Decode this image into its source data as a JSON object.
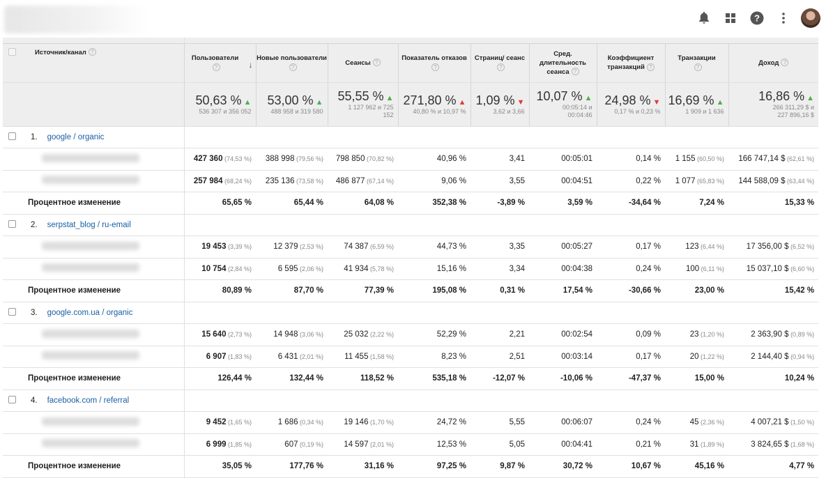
{
  "colors": {
    "up": "#4caf50",
    "down": "#e53935",
    "link": "#1a5fa5",
    "header_bg": "#eeeeee"
  },
  "header": {
    "source": "Источник/канал",
    "cols": [
      {
        "label": "Пользователи",
        "sort": true
      },
      {
        "label": "Новые пользователи"
      },
      {
        "label": "Сеансы"
      },
      {
        "label": "Показатель отказов"
      },
      {
        "label": "Страниц/ сеанс"
      },
      {
        "label": "Сред. длительность сеанса"
      },
      {
        "label": "Коэффициент транзакций"
      },
      {
        "label": "Транзакции"
      },
      {
        "label": "Доход"
      }
    ]
  },
  "summary": [
    {
      "big": "50,63 %",
      "dir": "up",
      "sub": "536 307 и 356 052"
    },
    {
      "big": "53,00 %",
      "dir": "up",
      "sub": "488 958 и 319 580"
    },
    {
      "big": "55,55 %",
      "dir": "up",
      "sub": "1 127 962 и 725 152"
    },
    {
      "big": "271,80 %",
      "dir": "up-red",
      "sub": "40,80 % и 10,97 %"
    },
    {
      "big": "1,09 %",
      "dir": "down",
      "sub": "3,62 и 3,66"
    },
    {
      "big": "10,07 %",
      "dir": "up",
      "sub": "00:05:14 и 00:04:46"
    },
    {
      "big": "24,98 %",
      "dir": "down",
      "sub": "0,17 % и 0,23 %"
    },
    {
      "big": "16,69 %",
      "dir": "up",
      "sub": "1 909 и 1 636"
    },
    {
      "big": "16,86 %",
      "dir": "up",
      "sub": "266 311,29 $ и 227 896,16 $"
    }
  ],
  "change_label": "Процентное изменение",
  "groups": [
    {
      "num": "1.",
      "name": "google / organic",
      "rows": [
        [
          [
            "427 360",
            "(74,53 %)"
          ],
          [
            "388 998",
            "(79,56 %)"
          ],
          [
            "798 850",
            "(70,82 %)"
          ],
          [
            "40,96 %",
            ""
          ],
          [
            "3,41",
            ""
          ],
          [
            "00:05:01",
            ""
          ],
          [
            "0,14 %",
            ""
          ],
          [
            "1 155",
            "(60,50 %)"
          ],
          [
            "166 747,14 $",
            "(62,61 %)"
          ]
        ],
        [
          [
            "257 984",
            "(68,24 %)"
          ],
          [
            "235 136",
            "(73,58 %)"
          ],
          [
            "486 877",
            "(67,14 %)"
          ],
          [
            "9,06 %",
            ""
          ],
          [
            "3,55",
            ""
          ],
          [
            "00:04:51",
            ""
          ],
          [
            "0,22 %",
            ""
          ],
          [
            "1 077",
            "(65,83 %)"
          ],
          [
            "144 588,09 $",
            "(63,44 %)"
          ]
        ]
      ],
      "change": [
        "65,65 %",
        "65,44 %",
        "64,08 %",
        "352,38 %",
        "-3,89 %",
        "3,59 %",
        "-34,64 %",
        "7,24 %",
        "15,33 %"
      ]
    },
    {
      "num": "2.",
      "name": "serpstat_blog / ru-email",
      "rows": [
        [
          [
            "19 453",
            "(3,39 %)"
          ],
          [
            "12 379",
            "(2,53 %)"
          ],
          [
            "74 387",
            "(6,59 %)"
          ],
          [
            "44,73 %",
            ""
          ],
          [
            "3,35",
            ""
          ],
          [
            "00:05:27",
            ""
          ],
          [
            "0,17 %",
            ""
          ],
          [
            "123",
            "(6,44 %)"
          ],
          [
            "17 356,00 $",
            "(6,52 %)"
          ]
        ],
        [
          [
            "10 754",
            "(2,84 %)"
          ],
          [
            "6 595",
            "(2,06 %)"
          ],
          [
            "41 934",
            "(5,78 %)"
          ],
          [
            "15,16 %",
            ""
          ],
          [
            "3,34",
            ""
          ],
          [
            "00:04:38",
            ""
          ],
          [
            "0,24 %",
            ""
          ],
          [
            "100",
            "(6,11 %)"
          ],
          [
            "15 037,10 $",
            "(6,60 %)"
          ]
        ]
      ],
      "change": [
        "80,89 %",
        "87,70 %",
        "77,39 %",
        "195,08 %",
        "0,31 %",
        "17,54 %",
        "-30,66 %",
        "23,00 %",
        "15,42 %"
      ]
    },
    {
      "num": "3.",
      "name": "google.com.ua / organic",
      "rows": [
        [
          [
            "15 640",
            "(2,73 %)"
          ],
          [
            "14 948",
            "(3,06 %)"
          ],
          [
            "25 032",
            "(2,22 %)"
          ],
          [
            "52,29 %",
            ""
          ],
          [
            "2,21",
            ""
          ],
          [
            "00:02:54",
            ""
          ],
          [
            "0,09 %",
            ""
          ],
          [
            "23",
            "(1,20 %)"
          ],
          [
            "2 363,90 $",
            "(0,89 %)"
          ]
        ],
        [
          [
            "6 907",
            "(1,83 %)"
          ],
          [
            "6 431",
            "(2,01 %)"
          ],
          [
            "11 455",
            "(1,58 %)"
          ],
          [
            "8,23 %",
            ""
          ],
          [
            "2,51",
            ""
          ],
          [
            "00:03:14",
            ""
          ],
          [
            "0,17 %",
            ""
          ],
          [
            "20",
            "(1,22 %)"
          ],
          [
            "2 144,40 $",
            "(0,94 %)"
          ]
        ]
      ],
      "change": [
        "126,44 %",
        "132,44 %",
        "118,52 %",
        "535,18 %",
        "-12,07 %",
        "-10,06 %",
        "-47,37 %",
        "15,00 %",
        "10,24 %"
      ]
    },
    {
      "num": "4.",
      "name": "facebook.com / referral",
      "rows": [
        [
          [
            "9 452",
            "(1,65 %)"
          ],
          [
            "1 686",
            "(0,34 %)"
          ],
          [
            "19 146",
            "(1,70 %)"
          ],
          [
            "24,72 %",
            ""
          ],
          [
            "5,55",
            ""
          ],
          [
            "00:06:07",
            ""
          ],
          [
            "0,24 %",
            ""
          ],
          [
            "45",
            "(2,36 %)"
          ],
          [
            "4 007,21 $",
            "(1,50 %)"
          ]
        ],
        [
          [
            "6 999",
            "(1,85 %)"
          ],
          [
            "607",
            "(0,19 %)"
          ],
          [
            "14 597",
            "(2,01 %)"
          ],
          [
            "12,53 %",
            ""
          ],
          [
            "5,05",
            ""
          ],
          [
            "00:04:41",
            ""
          ],
          [
            "0,21 %",
            ""
          ],
          [
            "31",
            "(1,89 %)"
          ],
          [
            "3 824,65 $",
            "(1,68 %)"
          ]
        ]
      ],
      "change": [
        "35,05 %",
        "177,76 %",
        "31,16 %",
        "97,25 %",
        "9,87 %",
        "30,72 %",
        "10,67 %",
        "45,16 %",
        "4,77 %"
      ]
    }
  ]
}
